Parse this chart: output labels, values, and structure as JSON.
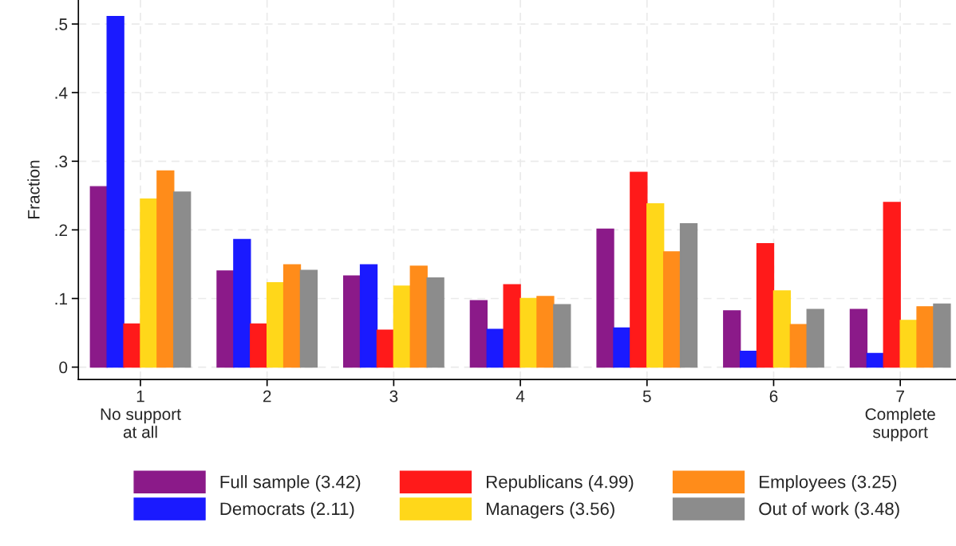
{
  "chart_data": {
    "type": "bar",
    "ylabel": "Fraction",
    "categories": [
      "1\nNo support\nat all",
      "2",
      "3",
      "4",
      "5",
      "6",
      "7\nComplete\nsupport"
    ],
    "series": [
      {
        "name": "Full sample (3.42)",
        "color": "#8b1a89",
        "values": [
          0.263,
          0.14,
          0.133,
          0.097,
          0.201,
          0.082,
          0.084
        ]
      },
      {
        "name": "Democrats (2.11)",
        "color": "#1a1aff",
        "values": [
          0.511,
          0.186,
          0.149,
          0.055,
          0.057,
          0.023,
          0.02
        ]
      },
      {
        "name": "Republicans (4.99)",
        "color": "#ff1a1a",
        "values": [
          0.063,
          0.063,
          0.054,
          0.12,
          0.284,
          0.18,
          0.24
        ]
      },
      {
        "name": "Managers (3.56)",
        "color": "#ffd71a",
        "values": [
          0.245,
          0.123,
          0.118,
          0.1,
          0.238,
          0.111,
          0.068
        ]
      },
      {
        "name": "Employees (3.25)",
        "color": "#ff8c1a",
        "values": [
          0.286,
          0.149,
          0.147,
          0.103,
          0.168,
          0.062,
          0.088
        ]
      },
      {
        "name": "Out of work (3.48)",
        "color": "#8c8c8c",
        "values": [
          0.255,
          0.141,
          0.13,
          0.091,
          0.209,
          0.084,
          0.092
        ]
      }
    ],
    "ylim": [
      -0.018,
      0.535
    ],
    "yticks": [
      {
        "value": 0,
        "label": "0"
      },
      {
        "value": 0.1,
        "label": ".1"
      },
      {
        "value": 0.2,
        "label": ".2"
      },
      {
        "value": 0.3,
        "label": ".3"
      },
      {
        "value": 0.4,
        "label": ".4"
      },
      {
        "value": 0.5,
        "label": ".5"
      }
    ],
    "grid": true,
    "legend": "bottom"
  }
}
